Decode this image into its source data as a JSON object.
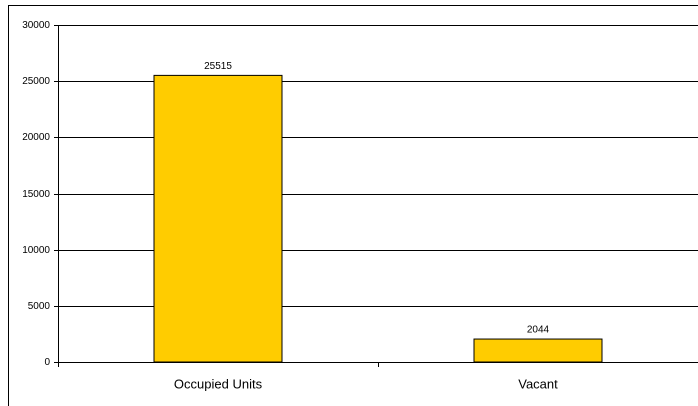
{
  "chart_data": {
    "type": "bar",
    "categories": [
      "Occupied Units",
      "Vacant"
    ],
    "values": [
      25515,
      2044
    ],
    "color": "#ffcc00",
    "ylim": [
      0,
      30000
    ],
    "yticks": [
      0,
      5000,
      10000,
      15000,
      20000,
      25000,
      30000
    ],
    "grid": true
  }
}
